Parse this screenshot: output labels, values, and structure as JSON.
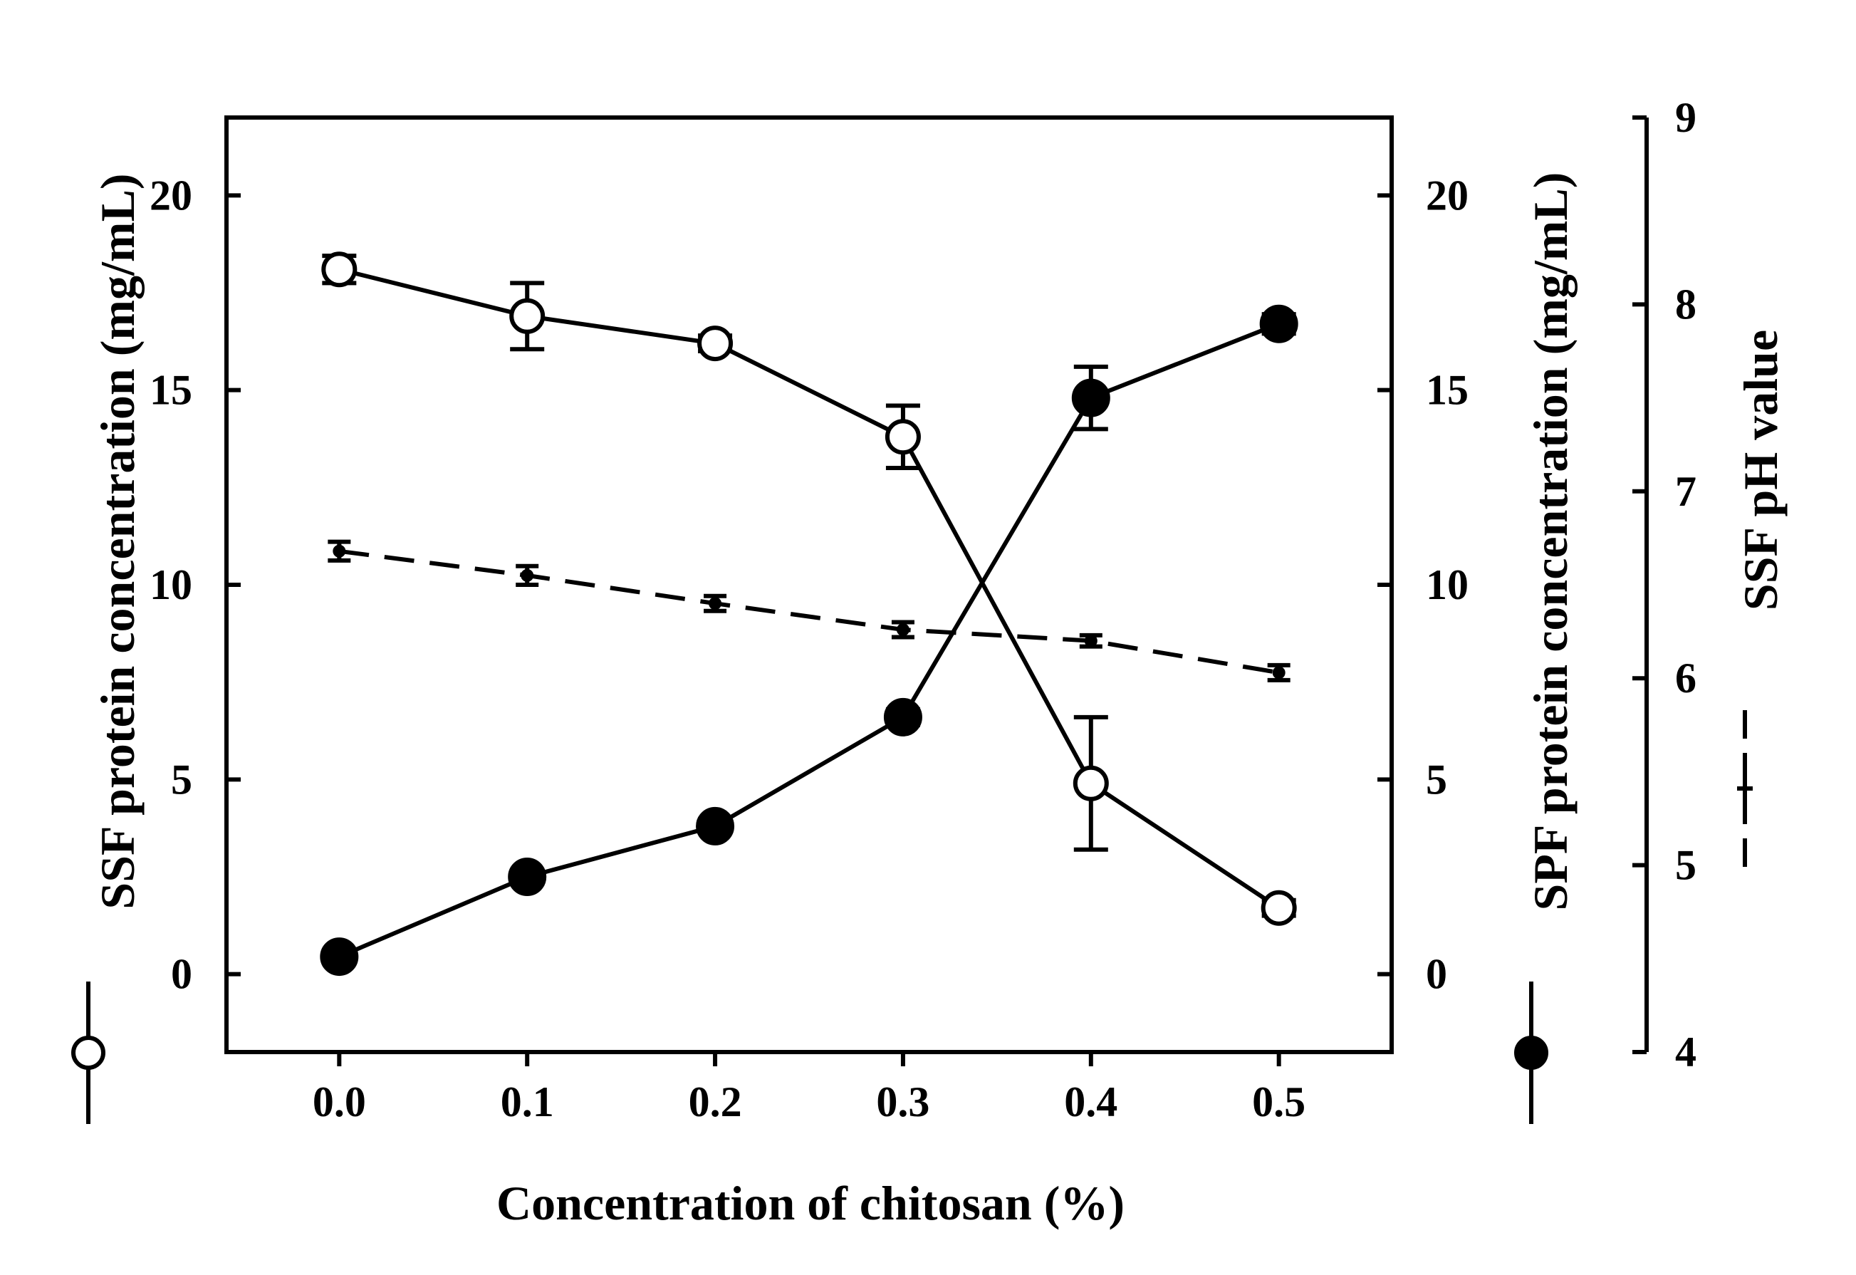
{
  "chart_data": {
    "type": "line",
    "xlabel": "Concentration of chitosan (%)",
    "x": [
      0.0,
      0.1,
      0.2,
      0.3,
      0.4,
      0.5
    ],
    "x_tick_labels": [
      "0.0",
      "0.1",
      "0.2",
      "0.3",
      "0.4",
      "0.5"
    ],
    "xlim": [
      -0.06,
      0.56
    ],
    "left_axis": {
      "label": "SSF protein concentration (mg/mL)",
      "ylim": [
        -2,
        22
      ],
      "ticks": [
        0,
        5,
        10,
        15,
        20
      ],
      "tick_labels": [
        "0",
        "5",
        "10",
        "15",
        "20"
      ]
    },
    "right_axis_1": {
      "label": "SPF protein concentration (mg/mL)",
      "ylim": [
        -2,
        22
      ],
      "ticks": [
        0,
        5,
        10,
        15,
        20
      ],
      "tick_labels": [
        "0",
        "5",
        "10",
        "15",
        "20"
      ]
    },
    "right_axis_2": {
      "label": "SSF pH value",
      "ylim": [
        4,
        9
      ],
      "ticks": [
        4,
        5,
        6,
        7,
        8,
        9
      ],
      "tick_labels": [
        "4",
        "5",
        "6",
        "7",
        "8",
        "9"
      ]
    },
    "series": [
      {
        "name": "SSF protein concentration",
        "axis": "left",
        "marker": "open-circle",
        "line": "solid",
        "values": [
          18.1,
          16.9,
          16.2,
          13.8,
          4.9,
          1.7
        ],
        "errors": [
          0.35,
          0.85,
          0.2,
          0.8,
          1.7,
          0.2
        ]
      },
      {
        "name": "SPF protein concentration",
        "axis": "right_1",
        "marker": "filled-circle",
        "line": "solid",
        "values": [
          0.45,
          2.5,
          3.8,
          6.6,
          14.8,
          16.7
        ],
        "errors": [
          0.15,
          0.15,
          0.15,
          0.2,
          0.8,
          0.25
        ]
      },
      {
        "name": "SSF pH value",
        "axis": "right_2",
        "marker": "small-dot",
        "line": "dashed",
        "values": [
          6.68,
          6.55,
          6.4,
          6.26,
          6.2,
          6.03
        ],
        "errors": [
          0.05,
          0.05,
          0.04,
          0.04,
          0.03,
          0.04
        ]
      }
    ]
  }
}
